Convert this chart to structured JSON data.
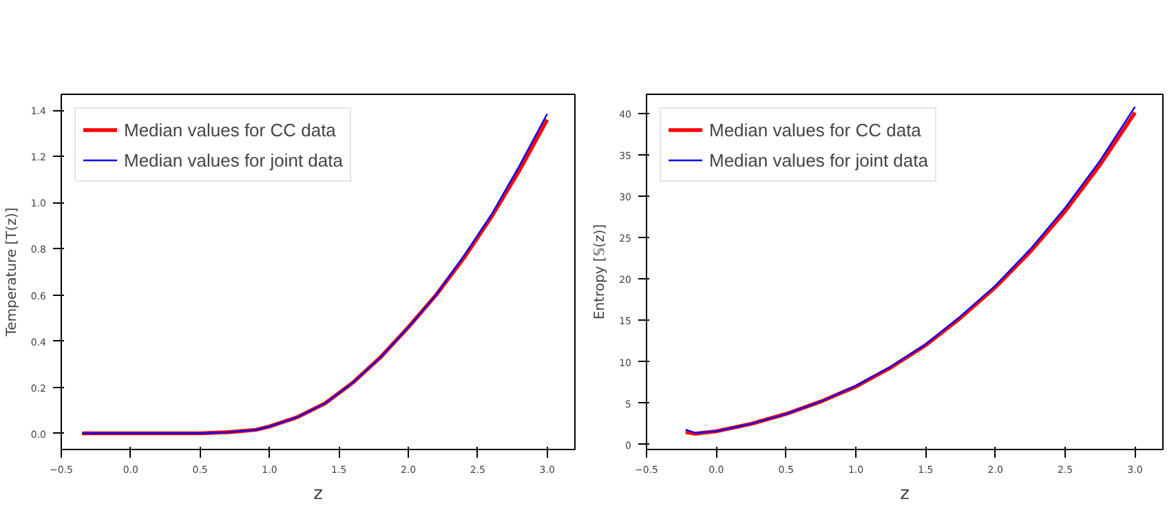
{
  "chart_data": [
    {
      "type": "line",
      "xlabel": "z",
      "ylabel": "Temperature [T(z)]",
      "legend": "top left",
      "grid": false,
      "xlim": [
        -0.5,
        3.2
      ],
      "ylim": [
        -0.07,
        1.47
      ],
      "xticks": [
        {
          "value": -0.5,
          "label": "−0.5"
        },
        {
          "value": 0,
          "label": "0.0"
        },
        0.5,
        {
          "value": 1,
          "label": "1.0"
        },
        1.5,
        {
          "value": 2,
          "label": "2.0"
        },
        2.5,
        {
          "value": 3,
          "label": "3.0"
        }
      ],
      "yticks": [
        {
          "value": 0,
          "label": "0.0"
        },
        0.2,
        0.4,
        0.6,
        0.8,
        {
          "value": 1,
          "label": "1.0"
        },
        1.2,
        1.4
      ],
      "series": [
        {
          "name": "Median values for CC data",
          "color": "#ff0000",
          "x": [
            -0.35,
            0.0,
            0.5,
            0.7,
            0.9,
            1.0,
            1.2,
            1.4,
            1.6,
            1.8,
            2.0,
            2.2,
            2.4,
            2.6,
            2.8,
            3.0
          ],
          "values": [
            0.0,
            0.0,
            0.0,
            0.005,
            0.015,
            0.03,
            0.07,
            0.13,
            0.22,
            0.33,
            0.46,
            0.6,
            0.76,
            0.94,
            1.14,
            1.36
          ]
        },
        {
          "name": "Median values for joint data",
          "color": "#0000ff",
          "x": [
            -0.35,
            0.0,
            0.5,
            0.7,
            0.9,
            1.0,
            1.2,
            1.4,
            1.6,
            1.8,
            2.0,
            2.2,
            2.4,
            2.6,
            2.8,
            3.0
          ],
          "values": [
            0.0,
            0.0,
            0.0,
            0.005,
            0.015,
            0.03,
            0.07,
            0.13,
            0.22,
            0.33,
            0.46,
            0.6,
            0.77,
            0.95,
            1.16,
            1.385
          ]
        }
      ]
    },
    {
      "type": "line",
      "xlabel": "z",
      "ylabel": "Entropy [𝕊(z)]",
      "legend": "top left",
      "grid": false,
      "xlim": [
        -0.5,
        3.2
      ],
      "ylim": [
        -0.6,
        42.3
      ],
      "xticks": [
        {
          "value": -0.5,
          "label": "−0.5"
        },
        {
          "value": 0,
          "label": "0.0"
        },
        0.5,
        {
          "value": 1,
          "label": "1.0"
        },
        1.5,
        {
          "value": 2,
          "label": "2.0"
        },
        2.5,
        {
          "value": 3,
          "label": "3.0"
        }
      ],
      "yticks": [
        0,
        5,
        10,
        15,
        20,
        25,
        30,
        35,
        40
      ],
      "series": [
        {
          "name": "Median values for CC data",
          "color": "#ff0000",
          "x": [
            -0.22,
            -0.15,
            0.0,
            0.25,
            0.5,
            0.75,
            1.0,
            1.25,
            1.5,
            1.75,
            2.0,
            2.25,
            2.5,
            2.75,
            3.0
          ],
          "values": [
            1.5,
            1.3,
            1.6,
            2.5,
            3.7,
            5.2,
            7.0,
            9.3,
            12.0,
            15.3,
            19.0,
            23.3,
            28.2,
            33.8,
            40.1
          ]
        },
        {
          "name": "Median values for joint data",
          "color": "#0000ff",
          "x": [
            -0.22,
            -0.15,
            0.0,
            0.25,
            0.5,
            0.75,
            1.0,
            1.25,
            1.5,
            1.75,
            2.0,
            2.25,
            2.5,
            2.75,
            3.0
          ],
          "values": [
            1.8,
            1.4,
            1.6,
            2.5,
            3.7,
            5.2,
            7.1,
            9.4,
            12.1,
            15.5,
            19.2,
            23.6,
            28.6,
            34.3,
            40.8
          ]
        }
      ]
    }
  ]
}
